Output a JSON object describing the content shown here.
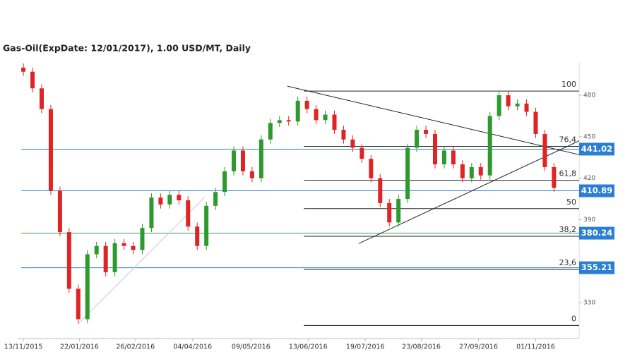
{
  "chart_data": {
    "type": "candlestick",
    "title": "Gas-Oil(ExpDate: 12/01/2017), 1.00 USD/MT, Daily",
    "x": [
      0,
      4,
      8,
      12,
      16,
      20,
      24,
      28,
      32,
      36,
      40,
      44,
      48,
      52,
      56,
      60,
      64,
      68,
      72,
      76,
      80,
      84,
      88,
      92,
      96,
      100,
      104,
      108,
      112,
      116,
      120,
      124,
      128,
      132,
      136,
      140,
      144,
      148,
      152,
      156,
      160,
      164,
      168,
      172,
      176,
      180,
      184,
      188,
      192,
      196,
      200,
      204,
      208,
      212,
      216,
      220,
      224,
      228,
      232
    ],
    "open": [
      500,
      497,
      485,
      470,
      411,
      381,
      340,
      318,
      365,
      371,
      352,
      373,
      371,
      368,
      384,
      406,
      401,
      408,
      404,
      385,
      371,
      400,
      410,
      425,
      440,
      425,
      420,
      448,
      460,
      462,
      461,
      476,
      470,
      462,
      466,
      455,
      448,
      442,
      434,
      420,
      402,
      388,
      405,
      442,
      455,
      452,
      430,
      440,
      430,
      420,
      428,
      422,
      465,
      480,
      472,
      474,
      468,
      452,
      428
    ],
    "high": [
      503,
      500,
      488,
      473,
      414,
      384,
      343,
      368,
      374,
      374,
      376,
      376,
      374,
      387,
      409,
      409,
      411,
      411,
      407,
      388,
      403,
      413,
      428,
      443,
      443,
      428,
      451,
      463,
      465,
      465,
      479,
      479,
      473,
      469,
      469,
      458,
      451,
      445,
      437,
      423,
      405,
      408,
      445,
      458,
      458,
      455,
      443,
      443,
      433,
      431,
      431,
      468,
      483,
      483,
      477,
      477,
      471,
      455,
      431
    ],
    "low": [
      494,
      482,
      467,
      408,
      378,
      337,
      315,
      315,
      362,
      349,
      349,
      368,
      365,
      365,
      381,
      398,
      398,
      401,
      382,
      368,
      368,
      397,
      407,
      422,
      422,
      417,
      417,
      445,
      457,
      458,
      458,
      467,
      459,
      459,
      452,
      445,
      439,
      431,
      417,
      399,
      385,
      385,
      402,
      439,
      449,
      427,
      427,
      427,
      417,
      417,
      419,
      419,
      462,
      469,
      469,
      465,
      449,
      425,
      410
    ],
    "close": [
      497,
      485,
      470,
      411,
      381,
      340,
      318,
      365,
      371,
      352,
      373,
      371,
      368,
      384,
      406,
      401,
      408,
      404,
      385,
      371,
      400,
      410,
      425,
      440,
      425,
      420,
      448,
      460,
      462,
      461,
      476,
      470,
      462,
      466,
      455,
      448,
      442,
      434,
      420,
      402,
      388,
      405,
      442,
      455,
      452,
      430,
      440,
      430,
      420,
      428,
      422,
      465,
      480,
      472,
      474,
      468,
      452,
      428,
      413
    ],
    "up_color": "#2e9a2e",
    "down_color": "#e02424",
    "xlim": [
      -2.5,
      243
    ],
    "ylim": [
      304,
      504
    ],
    "yticks": [
      330,
      390,
      420,
      450,
      480
    ],
    "xticks": [
      {
        "value": 0,
        "label": "13/11/2015"
      },
      {
        "value": 24.5,
        "label": "22/01/2016"
      },
      {
        "value": 49,
        "label": "26/02/2016"
      },
      {
        "value": 74,
        "label": "04/04/2016"
      },
      {
        "value": 99.5,
        "label": "09/05/2016"
      },
      {
        "value": 124.5,
        "label": "13/06/2016"
      },
      {
        "value": 149.5,
        "label": "19/07/2016"
      },
      {
        "value": 174,
        "label": "23/08/2016"
      },
      {
        "value": 199,
        "label": "27/09/2016"
      },
      {
        "value": 224,
        "label": "01/11/2016"
      }
    ],
    "price_lines": [
      {
        "value": 441.02,
        "color": "#2a7fd4"
      },
      {
        "value": 410.89,
        "color": "#2a7fd4"
      },
      {
        "value": 380.24,
        "color": "#3a9a5a"
      },
      {
        "value": 355.21,
        "color": "#2a7fd4"
      }
    ],
    "label_color": "#2a7fd4",
    "fibonacci": {
      "x_start": 122.6,
      "levels": [
        {
          "label": "100",
          "value": 483
        },
        {
          "label": "76,4",
          "value": 443
        },
        {
          "label": "61,8",
          "value": 418.5
        },
        {
          "label": "50",
          "value": 398
        },
        {
          "label": "38,2",
          "value": 378
        },
        {
          "label": "23,6",
          "value": 354
        },
        {
          "label": "0",
          "value": 313.5
        }
      ]
    },
    "trend_lines": [
      {
        "x": [
          115.4,
          243
        ],
        "y": [
          486.6,
          437
        ],
        "color": "#222222"
      },
      {
        "x": [
          146.6,
          243
        ],
        "y": [
          372.7,
          447
        ],
        "color": "#222222"
      },
      {
        "x": [
          23.8,
          79.3
        ],
        "y": [
          314.4,
          406.4
        ],
        "color": "#c8c8c8"
      }
    ]
  }
}
